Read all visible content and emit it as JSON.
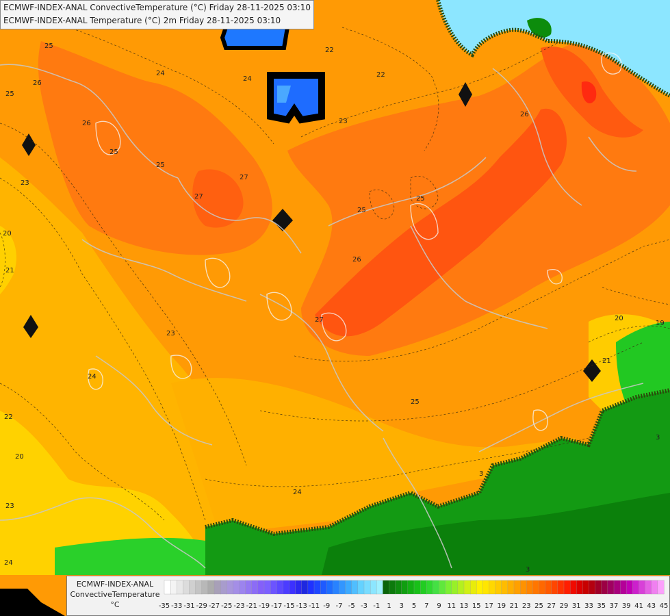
{
  "title": {
    "line1": "ECMWF-INDEX-ANAL ConvectiveTemperature (°C) Friday 28-11-2025 03:10",
    "line2": "ECMWF-INDEX-ANAL Temperature (°C) 2m Friday 28-11-2025 03:10"
  },
  "legend": {
    "model": "ECMWF-INDEX-ANAL",
    "parameter": "ConvectiveTemperature",
    "unit": "°C",
    "ticks": [
      "-35",
      "-33",
      "-31",
      "-29",
      "-27",
      "-25",
      "-23",
      "-21",
      "-19",
      "-17",
      "-15",
      "-13",
      "-11",
      "-9",
      "-7",
      "-5",
      "-3",
      "-1",
      "1",
      "3",
      "5",
      "7",
      "9",
      "11",
      "13",
      "15",
      "17",
      "19",
      "21",
      "23",
      "25",
      "27",
      "29",
      "31",
      "33",
      "35",
      "37",
      "39",
      "41",
      "43",
      "45"
    ]
  },
  "contour_labels": [
    "25",
    "26",
    "24",
    "22",
    "22",
    "25",
    "26",
    "23",
    "25",
    "27",
    "27",
    "26",
    "25",
    "25",
    "21",
    "20",
    "23",
    "24",
    "23",
    "27",
    "26",
    "24",
    "22",
    "20",
    "23",
    "24",
    "24",
    "25",
    "20",
    "19",
    "21",
    "3",
    "3",
    "3",
    "25"
  ],
  "colors": {
    "orange": "#ff9900",
    "dark_orange": "#ff6e14",
    "red_orange": "#ff4a10",
    "amber": "#ffb400",
    "yellow": "#ffe100",
    "green": "#16a516",
    "dark_green": "#0c8c0c",
    "light_blue": "#8ce6ff",
    "blue": "#1e78ff"
  }
}
